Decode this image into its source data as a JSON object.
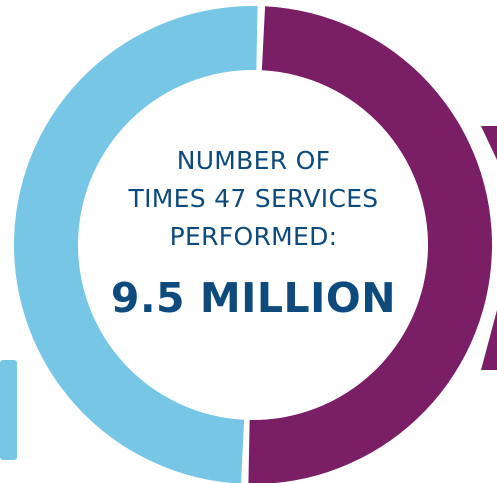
{
  "chart_data": {
    "type": "pie",
    "title": "",
    "center_label_lines": [
      "NUMBER OF",
      "TIMES 47 SERVICES",
      "PERFORMED:"
    ],
    "center_value": "9.5 MILLION",
    "categories": [
      "",
      ""
    ],
    "values": [
      50,
      50
    ],
    "colors": [
      "#7a1f66",
      "#78c6e6"
    ],
    "donut": true
  },
  "partial_shapes": {
    "right_color": "#7a1f66",
    "left_color": "#78c6e6"
  }
}
